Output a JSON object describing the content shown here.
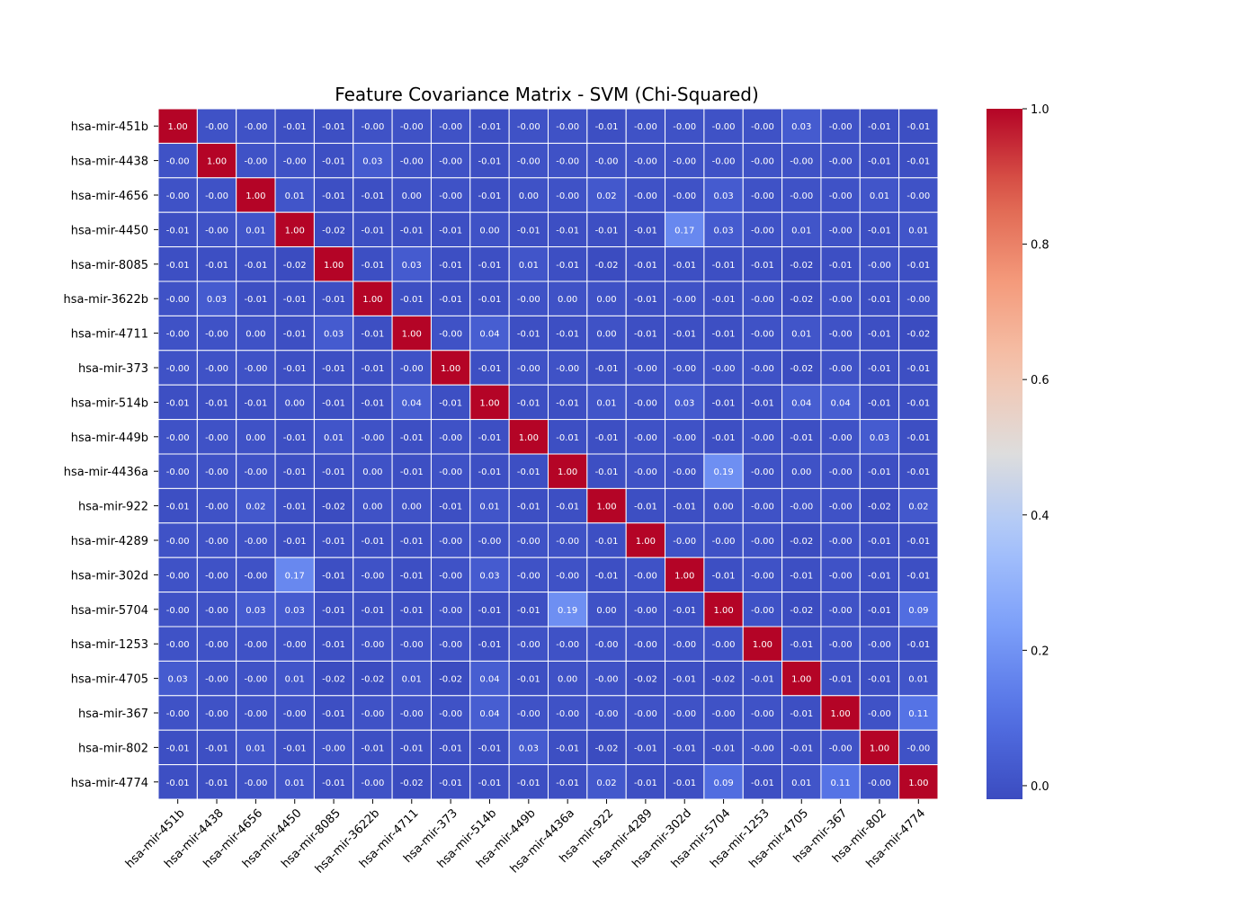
{
  "chart_data": {
    "type": "heatmap",
    "title": "Feature Covariance Matrix - SVM (Chi-Squared)",
    "xlabel": "",
    "ylabel": "",
    "labels": [
      "hsa-mir-451b",
      "hsa-mir-4438",
      "hsa-mir-4656",
      "hsa-mir-4450",
      "hsa-mir-8085",
      "hsa-mir-3622b",
      "hsa-mir-4711",
      "hsa-mir-373",
      "hsa-mir-514b",
      "hsa-mir-449b",
      "hsa-mir-4436a",
      "hsa-mir-922",
      "hsa-mir-4289",
      "hsa-mir-302d",
      "hsa-mir-5704",
      "hsa-mir-1253",
      "hsa-mir-4705",
      "hsa-mir-367",
      "hsa-mir-802",
      "hsa-mir-4774"
    ],
    "matrix": [
      [
        "1.00",
        "-0.00",
        "-0.00",
        "-0.01",
        "-0.01",
        "-0.00",
        "-0.00",
        "-0.00",
        "-0.01",
        "-0.00",
        "-0.00",
        "-0.01",
        "-0.00",
        "-0.00",
        "-0.00",
        "-0.00",
        "0.03",
        "-0.00",
        "-0.01",
        "-0.01"
      ],
      [
        "-0.00",
        "1.00",
        "-0.00",
        "-0.00",
        "-0.01",
        "0.03",
        "-0.00",
        "-0.00",
        "-0.01",
        "-0.00",
        "-0.00",
        "-0.00",
        "-0.00",
        "-0.00",
        "-0.00",
        "-0.00",
        "-0.00",
        "-0.00",
        "-0.01",
        "-0.01"
      ],
      [
        "-0.00",
        "-0.00",
        "1.00",
        "0.01",
        "-0.01",
        "-0.01",
        "0.00",
        "-0.00",
        "-0.01",
        "0.00",
        "-0.00",
        "0.02",
        "-0.00",
        "-0.00",
        "0.03",
        "-0.00",
        "-0.00",
        "-0.00",
        "0.01",
        "-0.00"
      ],
      [
        "-0.01",
        "-0.00",
        "0.01",
        "1.00",
        "-0.02",
        "-0.01",
        "-0.01",
        "-0.01",
        "0.00",
        "-0.01",
        "-0.01",
        "-0.01",
        "-0.01",
        "0.17",
        "0.03",
        "-0.00",
        "0.01",
        "-0.00",
        "-0.01",
        "0.01"
      ],
      [
        "-0.01",
        "-0.01",
        "-0.01",
        "-0.02",
        "1.00",
        "-0.01",
        "0.03",
        "-0.01",
        "-0.01",
        "0.01",
        "-0.01",
        "-0.02",
        "-0.01",
        "-0.01",
        "-0.01",
        "-0.01",
        "-0.02",
        "-0.01",
        "-0.00",
        "-0.01"
      ],
      [
        "-0.00",
        "0.03",
        "-0.01",
        "-0.01",
        "-0.01",
        "1.00",
        "-0.01",
        "-0.01",
        "-0.01",
        "-0.00",
        "0.00",
        "0.00",
        "-0.01",
        "-0.00",
        "-0.01",
        "-0.00",
        "-0.02",
        "-0.00",
        "-0.01",
        "-0.00"
      ],
      [
        "-0.00",
        "-0.00",
        "0.00",
        "-0.01",
        "0.03",
        "-0.01",
        "1.00",
        "-0.00",
        "0.04",
        "-0.01",
        "-0.01",
        "0.00",
        "-0.01",
        "-0.01",
        "-0.01",
        "-0.00",
        "0.01",
        "-0.00",
        "-0.01",
        "-0.02"
      ],
      [
        "-0.00",
        "-0.00",
        "-0.00",
        "-0.01",
        "-0.01",
        "-0.01",
        "-0.00",
        "1.00",
        "-0.01",
        "-0.00",
        "-0.00",
        "-0.01",
        "-0.00",
        "-0.00",
        "-0.00",
        "-0.00",
        "-0.02",
        "-0.00",
        "-0.01",
        "-0.01"
      ],
      [
        "-0.01",
        "-0.01",
        "-0.01",
        "0.00",
        "-0.01",
        "-0.01",
        "0.04",
        "-0.01",
        "1.00",
        "-0.01",
        "-0.01",
        "0.01",
        "-0.00",
        "0.03",
        "-0.01",
        "-0.01",
        "0.04",
        "0.04",
        "-0.01",
        "-0.01"
      ],
      [
        "-0.00",
        "-0.00",
        "0.00",
        "-0.01",
        "0.01",
        "-0.00",
        "-0.01",
        "-0.00",
        "-0.01",
        "1.00",
        "-0.01",
        "-0.01",
        "-0.00",
        "-0.00",
        "-0.01",
        "-0.00",
        "-0.01",
        "-0.00",
        "0.03",
        "-0.01"
      ],
      [
        "-0.00",
        "-0.00",
        "-0.00",
        "-0.01",
        "-0.01",
        "0.00",
        "-0.01",
        "-0.00",
        "-0.01",
        "-0.01",
        "1.00",
        "-0.01",
        "-0.00",
        "-0.00",
        "0.19",
        "-0.00",
        "0.00",
        "-0.00",
        "-0.01",
        "-0.01"
      ],
      [
        "-0.01",
        "-0.00",
        "0.02",
        "-0.01",
        "-0.02",
        "0.00",
        "0.00",
        "-0.01",
        "0.01",
        "-0.01",
        "-0.01",
        "1.00",
        "-0.01",
        "-0.01",
        "0.00",
        "-0.00",
        "-0.00",
        "-0.00",
        "-0.02",
        "0.02"
      ],
      [
        "-0.00",
        "-0.00",
        "-0.00",
        "-0.01",
        "-0.01",
        "-0.01",
        "-0.01",
        "-0.00",
        "-0.00",
        "-0.00",
        "-0.00",
        "-0.01",
        "1.00",
        "-0.00",
        "-0.00",
        "-0.00",
        "-0.02",
        "-0.00",
        "-0.01",
        "-0.01"
      ],
      [
        "-0.00",
        "-0.00",
        "-0.00",
        "0.17",
        "-0.01",
        "-0.00",
        "-0.01",
        "-0.00",
        "0.03",
        "-0.00",
        "-0.00",
        "-0.01",
        "-0.00",
        "1.00",
        "-0.01",
        "-0.00",
        "-0.01",
        "-0.00",
        "-0.01",
        "-0.01"
      ],
      [
        "-0.00",
        "-0.00",
        "0.03",
        "0.03",
        "-0.01",
        "-0.01",
        "-0.01",
        "-0.00",
        "-0.01",
        "-0.01",
        "0.19",
        "0.00",
        "-0.00",
        "-0.01",
        "1.00",
        "-0.00",
        "-0.02",
        "-0.00",
        "-0.01",
        "0.09"
      ],
      [
        "-0.00",
        "-0.00",
        "-0.00",
        "-0.00",
        "-0.01",
        "-0.00",
        "-0.00",
        "-0.00",
        "-0.01",
        "-0.00",
        "-0.00",
        "-0.00",
        "-0.00",
        "-0.00",
        "-0.00",
        "1.00",
        "-0.01",
        "-0.00",
        "-0.00",
        "-0.01"
      ],
      [
        "0.03",
        "-0.00",
        "-0.00",
        "0.01",
        "-0.02",
        "-0.02",
        "0.01",
        "-0.02",
        "0.04",
        "-0.01",
        "0.00",
        "-0.00",
        "-0.02",
        "-0.01",
        "-0.02",
        "-0.01",
        "1.00",
        "-0.01",
        "-0.01",
        "0.01"
      ],
      [
        "-0.00",
        "-0.00",
        "-0.00",
        "-0.00",
        "-0.01",
        "-0.00",
        "-0.00",
        "-0.00",
        "0.04",
        "-0.00",
        "-0.00",
        "-0.00",
        "-0.00",
        "-0.00",
        "-0.00",
        "-0.00",
        "-0.01",
        "1.00",
        "-0.00",
        "0.11"
      ],
      [
        "-0.01",
        "-0.01",
        "0.01",
        "-0.01",
        "-0.00",
        "-0.01",
        "-0.01",
        "-0.01",
        "-0.01",
        "0.03",
        "-0.01",
        "-0.02",
        "-0.01",
        "-0.01",
        "-0.01",
        "-0.00",
        "-0.01",
        "-0.00",
        "1.00",
        "-0.00"
      ],
      [
        "-0.01",
        "-0.01",
        "-0.00",
        "0.01",
        "-0.01",
        "-0.00",
        "-0.02",
        "-0.01",
        "-0.01",
        "-0.01",
        "-0.01",
        "0.02",
        "-0.01",
        "-0.01",
        "0.09",
        "-0.01",
        "0.01",
        "0.11",
        "-0.00",
        "1.00"
      ]
    ],
    "colorbar": {
      "colormap": "coolwarm",
      "range": [
        -0.02,
        1.0
      ],
      "ticks": [
        "0.0",
        "0.2",
        "0.4",
        "0.6",
        "0.8",
        "1.0"
      ]
    }
  }
}
